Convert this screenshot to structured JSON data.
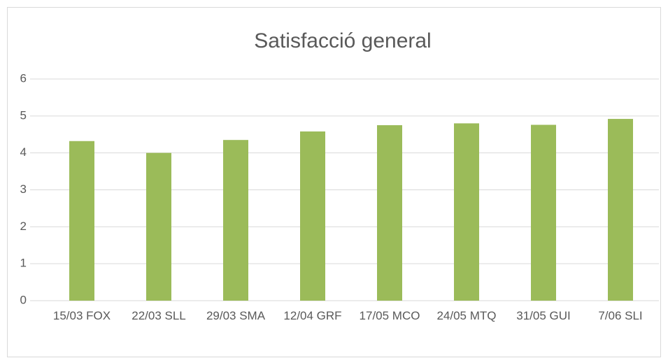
{
  "chart_data": {
    "type": "bar",
    "title": "Satisfacció general",
    "categories": [
      "15/03 FOX",
      "22/03 SLL",
      "29/03 SMA",
      "12/04 GRF",
      "17/05 MCO",
      "24/05 MTQ",
      "31/05 GUI",
      "7/06 SLI"
    ],
    "values": [
      4.32,
      4.0,
      4.35,
      4.58,
      4.75,
      4.8,
      4.76,
      4.92
    ],
    "color": "#9bbb59",
    "ylim": [
      0,
      6
    ],
    "yticks": [
      0,
      1,
      2,
      3,
      4,
      5,
      6
    ],
    "grid": true
  }
}
